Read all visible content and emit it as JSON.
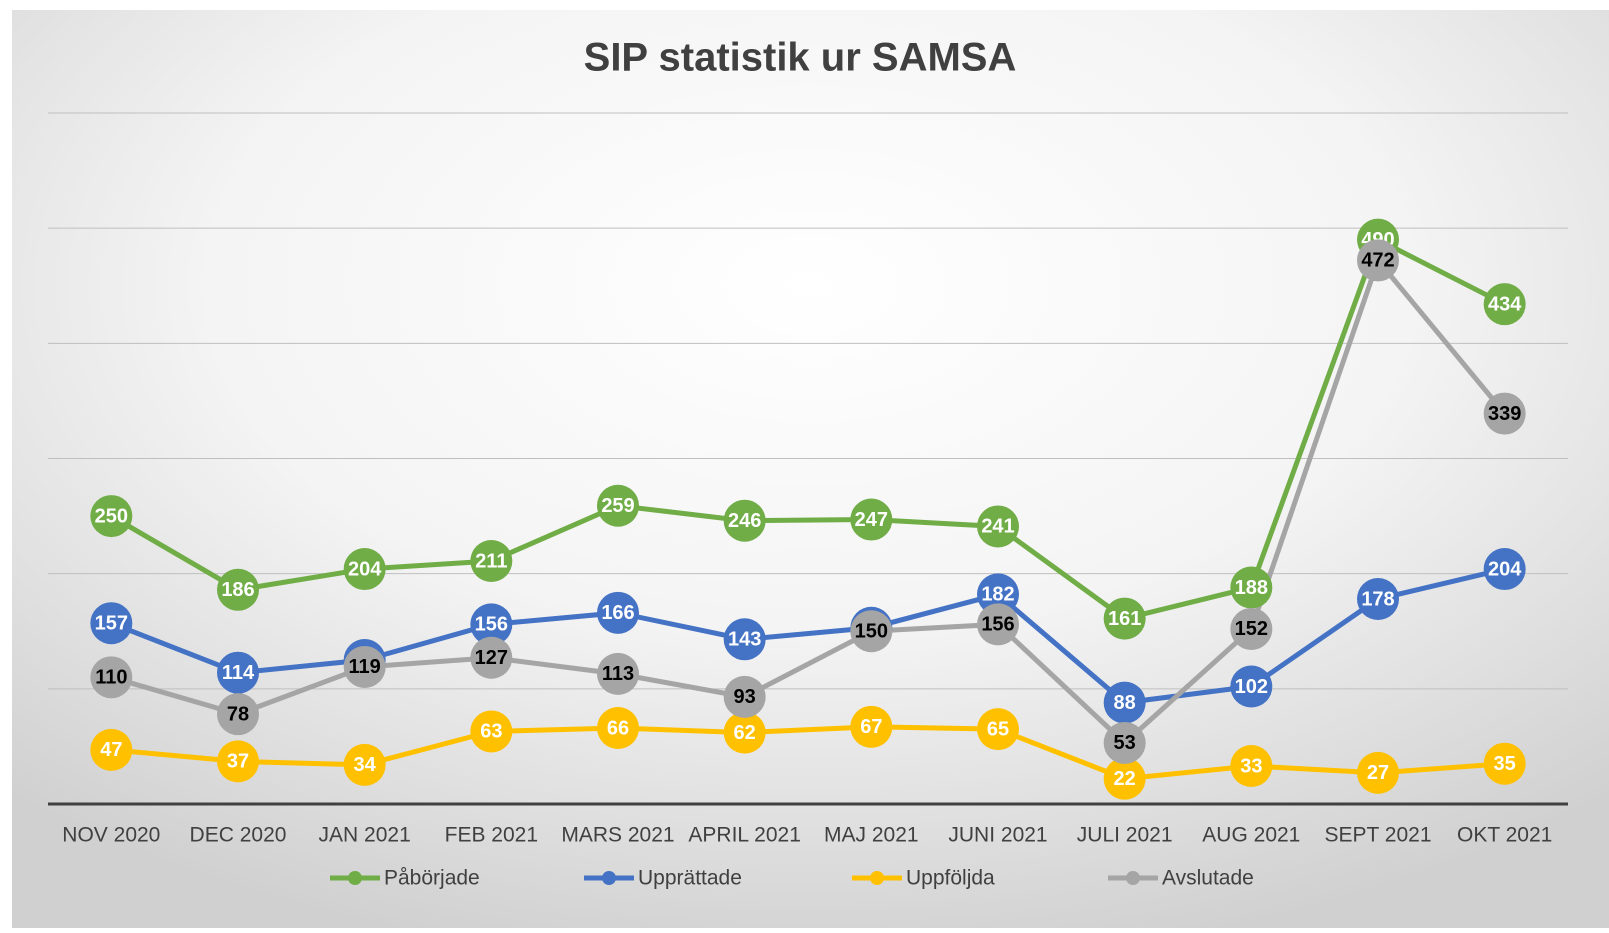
{
  "chart_data": {
    "type": "line",
    "title": "SIP statistik ur SAMSA",
    "categories": [
      "NOV 2020",
      "DEC 2020",
      "JAN 2021",
      "FEB 2021",
      "MARS 2021",
      "APRIL 2021",
      "MAJ 2021",
      "JUNI 2021",
      "JULI 2021",
      "AUG 2021",
      "SEPT 2021",
      "OKT 2021"
    ],
    "series": [
      {
        "name": "Påbörjade",
        "color": "#70ad47",
        "label_color": "#ffffff",
        "values": [
          250,
          186,
          204,
          211,
          259,
          246,
          247,
          241,
          161,
          188,
          490,
          434
        ]
      },
      {
        "name": "Upprättade",
        "color": "#4472c4",
        "label_color": "#ffffff",
        "values": [
          157,
          114,
          125,
          156,
          166,
          143,
          153,
          182,
          88,
          102,
          178,
          204
        ]
      },
      {
        "name": "Uppföljda",
        "color": "#ffc000",
        "label_color": "#ffffff",
        "values": [
          47,
          37,
          34,
          63,
          66,
          62,
          67,
          65,
          22,
          33,
          27,
          35
        ]
      },
      {
        "name": "Avslutade",
        "color": "#a5a5a5",
        "label_color": "#000000",
        "values": [
          110,
          78,
          119,
          127,
          113,
          93,
          150,
          156,
          53,
          152,
          472,
          339
        ]
      }
    ],
    "ylim": [
      0,
      600
    ],
    "yticks": [
      0,
      100,
      200,
      300,
      400,
      500,
      600
    ],
    "grid": true,
    "legend": "bottom"
  }
}
